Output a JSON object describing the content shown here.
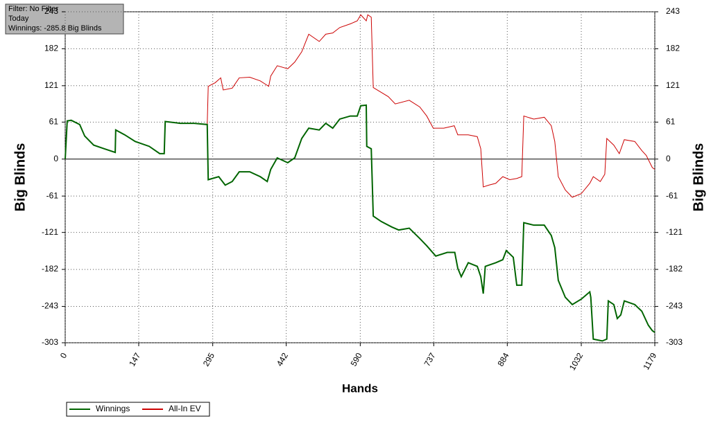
{
  "chart_data": {
    "type": "line",
    "info": [
      "Filter: No Filter",
      "Today",
      "Winnings: -285.8 Big Blinds"
    ],
    "xlabel": "Hands",
    "ylabel": "Big Blinds",
    "y2label": "Big Blinds",
    "xlim": [
      0,
      1179
    ],
    "xticks": [
      0,
      147,
      295,
      442,
      590,
      737,
      884,
      1032,
      1179
    ],
    "ylim": [
      -303,
      243
    ],
    "yticks": [
      -303,
      -243,
      -182,
      -121,
      -61,
      0,
      61,
      121,
      182,
      243
    ],
    "grid": true,
    "legend": "bottom-left",
    "series": [
      {
        "name": "Winnings",
        "color": "#006400",
        "x": [
          0,
          4,
          12,
          29,
          39,
          57,
          78,
          100,
          101,
          119,
          140,
          168,
          189,
          198,
          200,
          230,
          258,
          284,
          286,
          307,
          320,
          334,
          348,
          369,
          390,
          404,
          411,
          424,
          445,
          459,
          473,
          487,
          508,
          521,
          535,
          549,
          570,
          584,
          591,
          602,
          603,
          612,
          616,
          632,
          653,
          667,
          688,
          709,
          723,
          741,
          764,
          779,
          785,
          792,
          806,
          824,
          831,
          836,
          840,
          861,
          875,
          882,
          896,
          903,
          913,
          917,
          937,
          958,
          972,
          979,
          986,
          1000,
          1014,
          1032,
          1049,
          1051,
          1056,
          1074,
          1083,
          1086,
          1097,
          1104,
          1111,
          1118,
          1139,
          1153,
          1166,
          1174,
          1179
        ],
        "values": [
          0,
          63,
          64,
          57,
          38,
          23,
          17,
          11,
          48,
          40,
          29,
          21,
          9,
          9,
          62,
          59,
          59,
          57,
          -34,
          -29,
          -43,
          -37,
          -21,
          -21,
          -29,
          -37,
          -17,
          2,
          -6,
          2,
          34,
          51,
          48,
          59,
          51,
          66,
          71,
          71,
          88,
          89,
          21,
          17,
          -94,
          -103,
          -112,
          -117,
          -114,
          -131,
          -143,
          -160,
          -154,
          -154,
          -180,
          -194,
          -171,
          -177,
          -194,
          -222,
          -177,
          -171,
          -166,
          -151,
          -162,
          -208,
          -208,
          -105,
          -109,
          -109,
          -126,
          -146,
          -200,
          -228,
          -240,
          -231,
          -219,
          -228,
          -297,
          -300,
          -297,
          -234,
          -240,
          -263,
          -257,
          -234,
          -240,
          -251,
          -274,
          -283,
          -286
        ]
      },
      {
        "name": "All-In EV",
        "color": "#cc0000",
        "x": [
          0,
          4,
          12,
          29,
          39,
          57,
          78,
          100,
          101,
          119,
          140,
          168,
          189,
          198,
          200,
          230,
          258,
          284,
          286,
          300,
          311,
          316,
          334,
          348,
          369,
          390,
          407,
          411,
          424,
          445,
          459,
          473,
          487,
          508,
          521,
          535,
          549,
          570,
          584,
          591,
          602,
          605,
          612,
          616,
          646,
          660,
          688,
          709,
          723,
          736,
          757,
          778,
          785,
          806,
          824,
          831,
          836,
          847,
          861,
          875,
          889,
          903,
          913,
          917,
          937,
          958,
          972,
          979,
          986,
          1000,
          1014,
          1032,
          1049,
          1056,
          1070,
          1079,
          1083,
          1097,
          1108,
          1118,
          1139,
          1153,
          1162,
          1174,
          1179
        ],
        "values": [
          0,
          63,
          64,
          57,
          38,
          23,
          17,
          11,
          48,
          40,
          29,
          21,
          9,
          9,
          62,
          59,
          59,
          57,
          120,
          126,
          134,
          114,
          117,
          134,
          135,
          129,
          120,
          137,
          154,
          149,
          160,
          177,
          206,
          194,
          206,
          208,
          217,
          223,
          228,
          238,
          228,
          238,
          234,
          118,
          103,
          91,
          97,
          86,
          71,
          51,
          51,
          55,
          40,
          40,
          37,
          17,
          -46,
          -43,
          -40,
          -29,
          -34,
          -32,
          -29,
          71,
          66,
          69,
          55,
          29,
          -29,
          -51,
          -63,
          -57,
          -40,
          -29,
          -37,
          -25,
          34,
          23,
          9,
          32,
          29,
          14,
          6,
          -14,
          -17
        ]
      }
    ]
  }
}
